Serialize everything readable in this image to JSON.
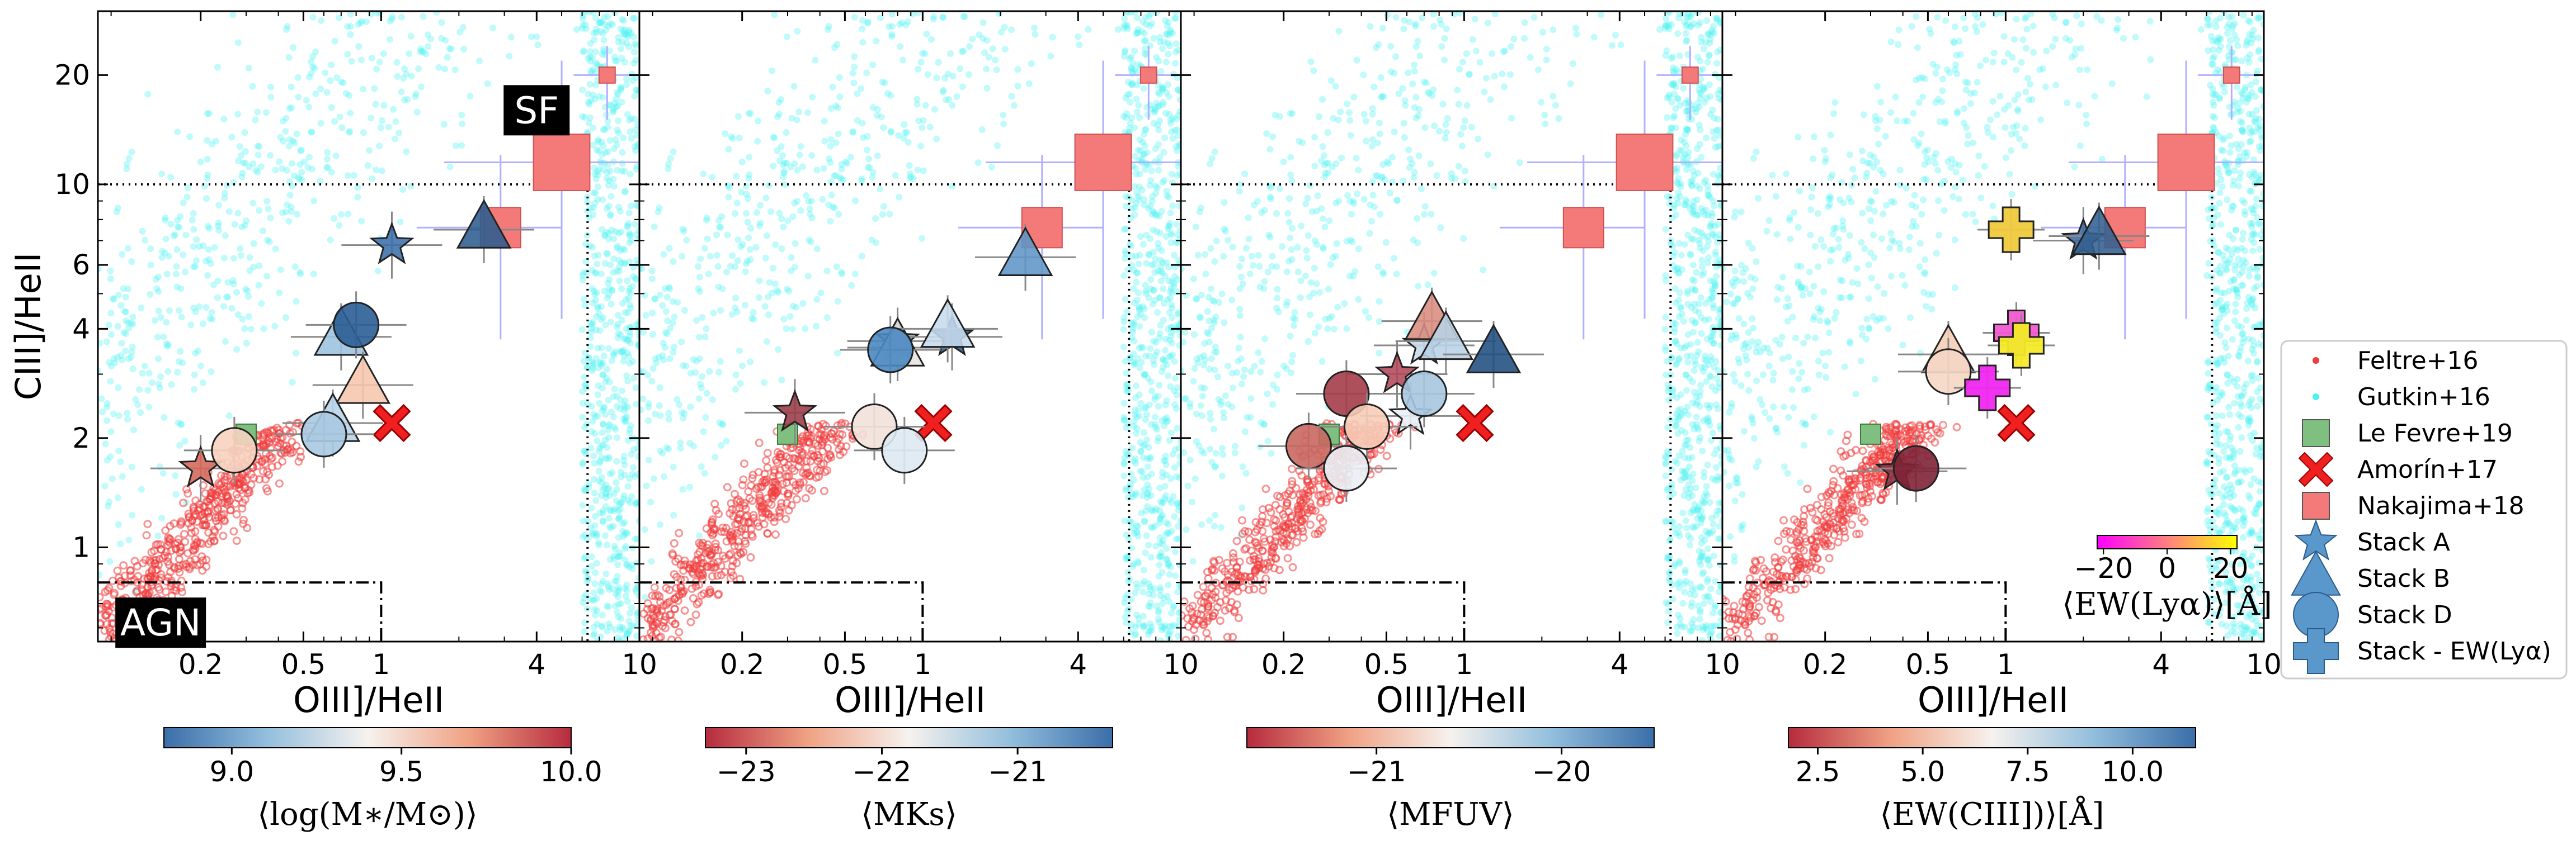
{
  "chart_data": [
    {
      "type": "scatter",
      "panel": 1,
      "xlabel": "OIII]/HeII",
      "ylabel": "CIII]/HeII",
      "xscale": "log",
      "yscale": "log",
      "xlim": [
        0.08,
        10
      ],
      "ylim": [
        0.55,
        30
      ],
      "xticks": [
        {
          "v": 0.2,
          "t": "0.2"
        },
        {
          "v": 0.5,
          "t": "0.5"
        },
        {
          "v": 1,
          "t": "1"
        },
        {
          "v": 4,
          "t": "4"
        },
        {
          "v": 10,
          "t": "10"
        }
      ],
      "yticks": [
        {
          "v": 1,
          "t": "1"
        },
        {
          "v": 2,
          "t": "2"
        },
        {
          "v": 4,
          "t": "4"
        },
        {
          "v": 6,
          "t": "6"
        },
        {
          "v": 10,
          "t": "10"
        },
        {
          "v": 20,
          "t": "20"
        }
      ],
      "region_labels": [
        {
          "text": "SF",
          "x": 4.0,
          "y": 16
        },
        {
          "text": "AGN",
          "x": 0.14,
          "y": 0.62
        }
      ],
      "colorbar": {
        "label": "⟨log(M∗/M⊙)⟩",
        "min": 8.8,
        "max": 10.0,
        "ticks": [
          {
            "v": 9.0,
            "t": "9.0"
          },
          {
            "v": 9.5,
            "t": "9.5"
          },
          {
            "v": 10.0,
            "t": "10.0"
          }
        ],
        "cmap": "RdBu_r"
      },
      "stacks": [
        {
          "type": "A",
          "x": 1.1,
          "y": 6.8,
          "c": "#3b6fa8"
        },
        {
          "type": "A",
          "x": 0.2,
          "y": 1.65,
          "c": "#d4675a"
        },
        {
          "type": "B",
          "x": 2.5,
          "y": 7.5,
          "c": "#2e5c90"
        },
        {
          "type": "B",
          "x": 0.7,
          "y": 3.8,
          "c": "#9cc1de"
        },
        {
          "type": "B",
          "x": 0.85,
          "y": 2.8,
          "c": "#f6c6ad"
        },
        {
          "type": "B",
          "x": 0.65,
          "y": 2.2,
          "c": "#b7d3e8"
        },
        {
          "type": "D",
          "x": 0.8,
          "y": 4.1,
          "c": "#2b5e96"
        },
        {
          "type": "D",
          "x": 0.27,
          "y": 1.85,
          "c": "#f7d3c0"
        },
        {
          "type": "D",
          "x": 0.6,
          "y": 2.05,
          "c": "#a9c9e2"
        }
      ]
    },
    {
      "type": "scatter",
      "panel": 2,
      "xlabel": "OIII]/HeII",
      "xscale": "log",
      "yscale": "log",
      "xlim": [
        0.08,
        10
      ],
      "ylim": [
        0.55,
        30
      ],
      "xticks": [
        {
          "v": 0.2,
          "t": "0.2"
        },
        {
          "v": 0.5,
          "t": "0.5"
        },
        {
          "v": 1,
          "t": "1"
        },
        {
          "v": 4,
          "t": "4"
        },
        {
          "v": 10,
          "t": "10"
        }
      ],
      "colorbar": {
        "label": "⟨MKs⟩",
        "min": -23.3,
        "max": -20.3,
        "ticks": [
          {
            "v": -23,
            "t": "−23"
          },
          {
            "v": -22,
            "t": "−22"
          },
          {
            "v": -21,
            "t": "−21"
          }
        ],
        "cmap": "RdBu"
      },
      "stacks": [
        {
          "type": "A",
          "x": 0.32,
          "y": 2.35,
          "c": "#9a3a45"
        },
        {
          "type": "A",
          "x": 0.8,
          "y": 3.7,
          "c": "#8fb8da"
        },
        {
          "type": "A",
          "x": 1.3,
          "y": 3.8,
          "c": "#2c5c94"
        },
        {
          "type": "B",
          "x": 0.8,
          "y": 3.55,
          "c": "#e9e2e0"
        },
        {
          "type": "B",
          "x": 2.5,
          "y": 6.3,
          "c": "#5f95c6"
        },
        {
          "type": "B",
          "x": 1.25,
          "y": 4.0,
          "c": "#c7dcee"
        },
        {
          "type": "D",
          "x": 0.75,
          "y": 3.5,
          "c": "#4a88c2"
        },
        {
          "type": "D",
          "x": 0.65,
          "y": 2.15,
          "c": "#f3e1da"
        },
        {
          "type": "D",
          "x": 0.85,
          "y": 1.85,
          "c": "#dde9f2"
        }
      ]
    },
    {
      "type": "scatter",
      "panel": 3,
      "xlabel": "OIII]/HeII",
      "xscale": "log",
      "yscale": "log",
      "xlim": [
        0.08,
        10
      ],
      "ylim": [
        0.55,
        30
      ],
      "xticks": [
        {
          "v": 0.2,
          "t": "0.2"
        },
        {
          "v": 0.5,
          "t": "0.5"
        },
        {
          "v": 1,
          "t": "1"
        },
        {
          "v": 4,
          "t": "4"
        },
        {
          "v": 10,
          "t": "10"
        }
      ],
      "colorbar": {
        "label": "⟨MFUV⟩",
        "min": -21.7,
        "max": -19.5,
        "ticks": [
          {
            "v": -21,
            "t": "−21"
          },
          {
            "v": -20,
            "t": "−20"
          }
        ],
        "cmap": "RdBu"
      },
      "stacks": [
        {
          "type": "A",
          "x": 0.55,
          "y": 3.0,
          "c": "#b2485a"
        },
        {
          "type": "A",
          "x": 0.62,
          "y": 2.3,
          "c": "#e7eef4"
        },
        {
          "type": "A",
          "x": 0.7,
          "y": 3.6,
          "c": "#c5d9ea"
        },
        {
          "type": "B",
          "x": 0.75,
          "y": 4.2,
          "c": "#d98c80"
        },
        {
          "type": "B",
          "x": 0.85,
          "y": 3.7,
          "c": "#b9d2e6"
        },
        {
          "type": "B",
          "x": 1.3,
          "y": 3.4,
          "c": "#1f4e80"
        },
        {
          "type": "D",
          "x": 0.35,
          "y": 2.65,
          "c": "#a53c4a"
        },
        {
          "type": "D",
          "x": 0.25,
          "y": 1.9,
          "c": "#c96760"
        },
        {
          "type": "D",
          "x": 0.42,
          "y": 2.15,
          "c": "#f6cdb8"
        },
        {
          "type": "D",
          "x": 0.35,
          "y": 1.65,
          "c": "#e9eff4"
        },
        {
          "type": "D",
          "x": 0.7,
          "y": 2.65,
          "c": "#a6c6e0"
        }
      ]
    },
    {
      "type": "scatter",
      "panel": 4,
      "xlabel": "OIII]/HeII",
      "xscale": "log",
      "yscale": "log",
      "xlim": [
        0.08,
        10
      ],
      "ylim": [
        0.55,
        30
      ],
      "xticks": [
        {
          "v": 0.2,
          "t": "0.2"
        },
        {
          "v": 0.5,
          "t": "0.5"
        },
        {
          "v": 1,
          "t": "1"
        },
        {
          "v": 4,
          "t": "4"
        },
        {
          "v": 10,
          "t": "10"
        }
      ],
      "colorbar": {
        "label": "⟨EW(CIII])⟩[Å]",
        "min": 1.8,
        "max": 11.5,
        "ticks": [
          {
            "v": 2.5,
            "t": "2.5"
          },
          {
            "v": 5.0,
            "t": "5.0"
          },
          {
            "v": 7.5,
            "t": "7.5"
          },
          {
            "v": 10.0,
            "t": "10.0"
          }
        ],
        "cmap": "RdBu"
      },
      "inset_colorbar": {
        "label": "⟨EW(Lyα)⟩[Å]",
        "min": -22,
        "max": 22,
        "ticks": [
          {
            "v": -20,
            "t": "−20"
          },
          {
            "v": 0,
            "t": "0"
          },
          {
            "v": 20,
            "t": "20"
          }
        ],
        "cmap": "spring"
      },
      "stacks": [
        {
          "type": "A",
          "x": 0.38,
          "y": 1.62,
          "c": "#8a2a3c"
        },
        {
          "type": "A",
          "x": 2.0,
          "y": 7.0,
          "c": "#3a6aa0"
        },
        {
          "type": "B",
          "x": 0.6,
          "y": 3.4,
          "c": "#f4cdb6"
        },
        {
          "type": "B",
          "x": 2.3,
          "y": 7.2,
          "c": "#33608f"
        },
        {
          "type": "D",
          "x": 0.45,
          "y": 1.65,
          "c": "#7e2436"
        },
        {
          "type": "D",
          "x": 0.6,
          "y": 3.05,
          "c": "#f5d6c4"
        }
      ],
      "ew_stacks": [
        {
          "x": 1.05,
          "y": 7.5,
          "c": "#f0c93c"
        },
        {
          "x": 1.1,
          "y": 3.9,
          "c": "#f05ad0"
        },
        {
          "x": 1.15,
          "y": 3.6,
          "c": "#f4ea28"
        },
        {
          "x": 0.85,
          "y": 2.75,
          "c": "#f028f0"
        }
      ]
    }
  ],
  "reference": {
    "le_fevre": {
      "x": 0.3,
      "y": 2.05
    },
    "amorin": {
      "x": 1.1,
      "y": 2.2
    },
    "nakajima": [
      {
        "x": 5.0,
        "y": 11.5,
        "s": 1.4
      },
      {
        "x": 2.9,
        "y": 7.6,
        "s": 1.0
      },
      {
        "x": 7.5,
        "y": 20,
        "s": 0.4
      }
    ],
    "sf_lines": {
      "oiii_max": 6.3,
      "ciii_min": 10
    },
    "agn_box": {
      "oiii_max": 1.0,
      "ciii_max": 0.8
    }
  },
  "legend": [
    {
      "label": "Feltre+16",
      "marker": "dot",
      "color": "#f03c3c"
    },
    {
      "label": "Gutkin+16",
      "marker": "dot",
      "color": "#4ef0f0"
    },
    {
      "label": "Le Fevre+19",
      "marker": "square",
      "color": "#7fbf7f"
    },
    {
      "label": "Amorín+17",
      "marker": "x",
      "color": "#f02020"
    },
    {
      "label": "Nakajima+18",
      "marker": "square",
      "color": "#f47a7a"
    },
    {
      "label": "Stack A",
      "marker": "star",
      "color": "#5a98cc"
    },
    {
      "label": "Stack B",
      "marker": "triangle",
      "color": "#5a98cc"
    },
    {
      "label": "Stack D",
      "marker": "circle",
      "color": "#5a98cc"
    },
    {
      "label": "Stack - EW(Lyα)",
      "marker": "plus",
      "color": "#5a98cc"
    }
  ]
}
